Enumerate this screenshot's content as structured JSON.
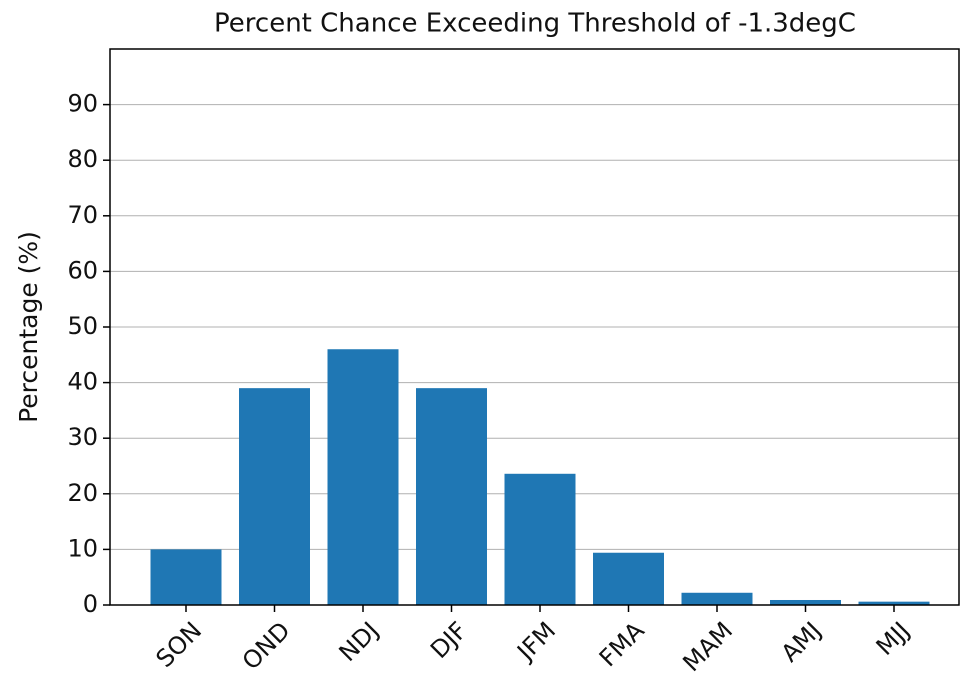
{
  "chart_data": {
    "type": "bar",
    "title": "Percent Chance Exceeding Threshold of -1.3degC",
    "y_label": "Percentage (%)",
    "categories": [
      "SON",
      "OND",
      "NDJ",
      "DJF",
      "JFM",
      "FMA",
      "MAM",
      "AMJ",
      "MJJ"
    ],
    "values": [
      10,
      39,
      46,
      39,
      23.6,
      9.4,
      2.2,
      0.9,
      0.6
    ],
    "color": "#1f77b4",
    "ylim": [
      0,
      100
    ],
    "yticks": [
      0,
      10,
      20,
      30,
      40,
      50,
      60,
      70,
      80,
      90
    ],
    "grid": true
  }
}
